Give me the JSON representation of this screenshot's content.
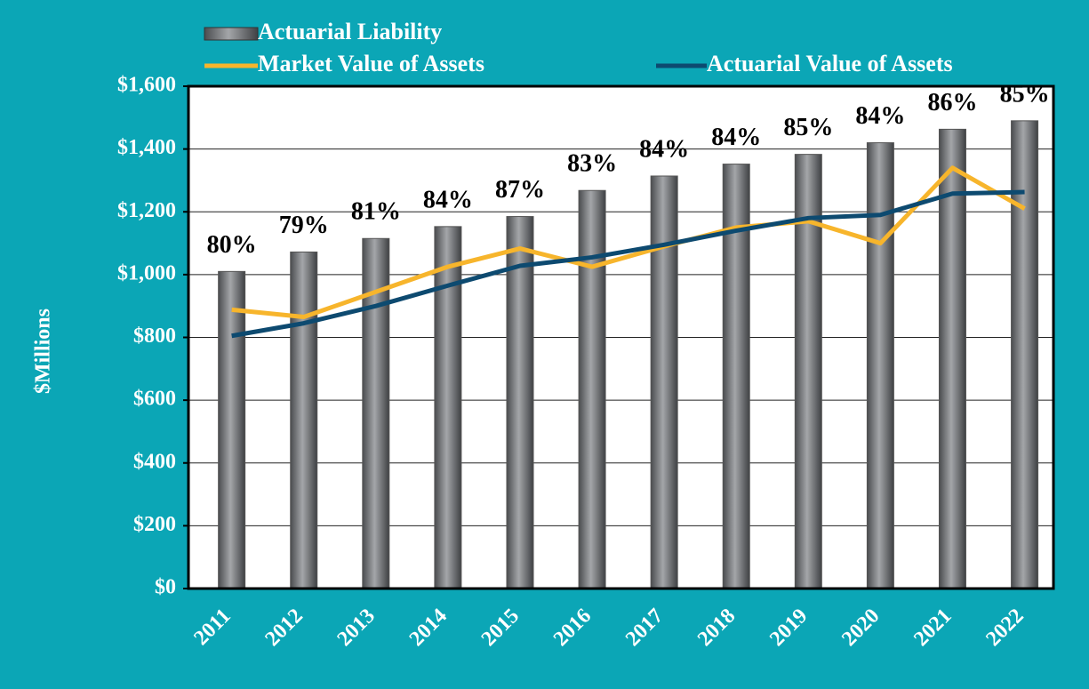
{
  "chart_data": {
    "type": "bar_line",
    "y_axis_label": "$Millions",
    "categories": [
      "2011",
      "2012",
      "2013",
      "2014",
      "2015",
      "2016",
      "2017",
      "2018",
      "2019",
      "2020",
      "2021",
      "2022"
    ],
    "series": [
      {
        "name": "Actuarial Liability",
        "type": "bar",
        "color": "#7b7d80",
        "values": [
          1010,
          1072,
          1115,
          1153,
          1185,
          1268,
          1314,
          1352,
          1383,
          1420,
          1463,
          1490
        ]
      },
      {
        "name": "Market Value of Assets",
        "type": "line",
        "color": "#f7b52c",
        "values": [
          888,
          865,
          945,
          1025,
          1083,
          1025,
          1090,
          1150,
          1170,
          1100,
          1340,
          1210
        ]
      },
      {
        "name": "Actuarial Value of Assets",
        "type": "line",
        "color": "#0d4a70",
        "values": [
          805,
          845,
          900,
          965,
          1028,
          1055,
          1095,
          1140,
          1180,
          1190,
          1258,
          1263
        ]
      }
    ],
    "funded_ratio_labels": [
      "80%",
      "79%",
      "81%",
      "84%",
      "87%",
      "83%",
      "84%",
      "84%",
      "85%",
      "84%",
      "86%",
      "85%"
    ],
    "ylim": [
      0,
      1600
    ],
    "yticks": [
      {
        "value": 0,
        "label": "$0"
      },
      {
        "value": 200,
        "label": "$200"
      },
      {
        "value": 400,
        "label": "$400"
      },
      {
        "value": 600,
        "label": "$600"
      },
      {
        "value": 800,
        "label": "$800"
      },
      {
        "value": 1000,
        "label": "$1,000"
      },
      {
        "value": 1200,
        "label": "$1,200"
      },
      {
        "value": 1400,
        "label": "$1,400"
      },
      {
        "value": 1600,
        "label": "$1,600"
      }
    ],
    "grid": true
  }
}
